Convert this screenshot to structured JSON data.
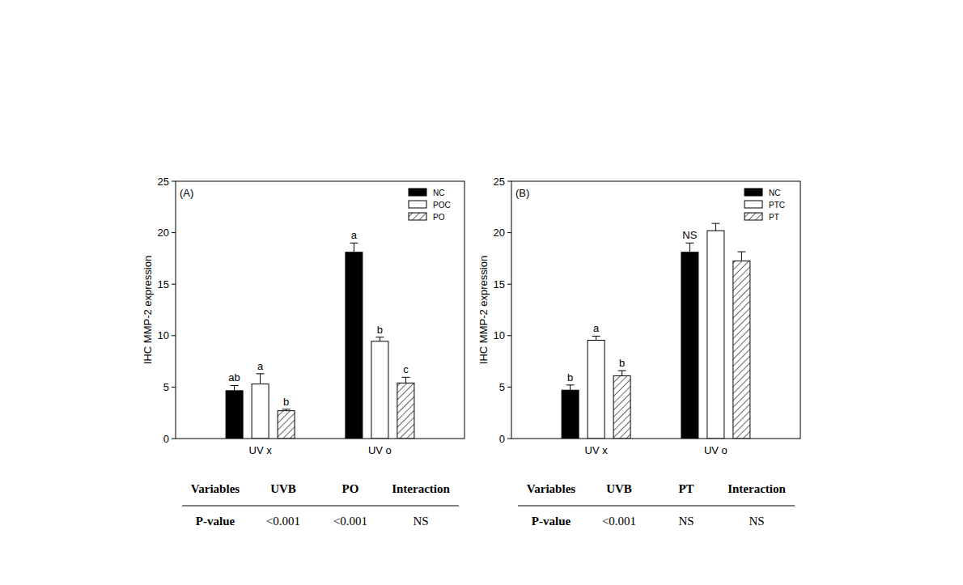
{
  "chart_data": [
    {
      "type": "bar",
      "title": "(A)",
      "y_label": "IHC MMP-2 expression",
      "categories": [
        "UV x",
        "UV o"
      ],
      "series": [
        {
          "name": "NC",
          "color": "#000000",
          "values": [
            4.65,
            18.1
          ],
          "errors": [
            0.5,
            0.9
          ],
          "letters": [
            "ab",
            "a"
          ]
        },
        {
          "name": "POC",
          "color": "#ffffff",
          "values": [
            5.3,
            9.45
          ],
          "errors": [
            1.0,
            0.4
          ],
          "letters": [
            "a",
            "b"
          ]
        },
        {
          "name": "PO",
          "color": "#ffffff",
          "values": [
            2.7,
            5.4
          ],
          "errors": [
            0.15,
            0.55
          ],
          "letters": [
            "b",
            "c"
          ]
        }
      ],
      "ylim": [
        0,
        25
      ],
      "yticks": [
        0,
        5,
        10,
        15,
        20,
        25
      ],
      "grid": false,
      "legend": "upper right",
      "table": {
        "header": [
          "Variables",
          "UVB",
          "PO",
          "Interaction"
        ],
        "rows": [
          [
            "P-value",
            "<0.001",
            "<0.001",
            "NS"
          ]
        ]
      }
    },
    {
      "type": "bar",
      "title": "(B)",
      "y_label": "IHC MMP-2 expression",
      "categories": [
        "UV x",
        "UV o"
      ],
      "series": [
        {
          "name": "NC",
          "color": "#000000",
          "values": [
            4.7,
            18.1
          ],
          "errors": [
            0.5,
            0.9
          ],
          "letters": [
            "b",
            "NS"
          ]
        },
        {
          "name": "PTC",
          "color": "#ffffff",
          "values": [
            9.55,
            20.2
          ],
          "errors": [
            0.4,
            0.7
          ],
          "letters": [
            "a",
            null
          ]
        },
        {
          "name": "PT",
          "color": "#ffffff",
          "values": [
            6.1,
            17.25
          ],
          "errors": [
            0.5,
            0.9
          ],
          "letters": [
            "b",
            null
          ]
        }
      ],
      "ylim": [
        0,
        25
      ],
      "yticks": [
        0,
        5,
        10,
        15,
        20,
        25
      ],
      "grid": false,
      "legend": "upper right",
      "table": {
        "header": [
          "Variables",
          "UVB",
          "PT",
          "Interaction"
        ],
        "rows": [
          [
            "P-value",
            "<0.001",
            "NS",
            "NS"
          ]
        ]
      }
    }
  ]
}
